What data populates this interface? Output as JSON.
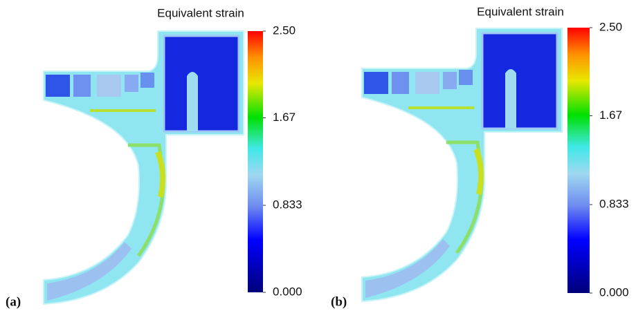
{
  "panels": [
    {
      "label": "(a)",
      "colorbar": {
        "title": "Equivalent strain",
        "lim": [
          0,
          2.5
        ],
        "ticks": [
          {
            "value": 2.5,
            "label": "2.50"
          },
          {
            "value": 1.67,
            "label": "1.67"
          },
          0.833,
          {
            "value": 0,
            "label": "0.000"
          }
        ]
      }
    },
    {
      "label": "(b)",
      "colorbar": {
        "title": "Equivalent strain",
        "lim": [
          0,
          2.5
        ],
        "ticks": [
          {
            "value": 2.5,
            "label": "2.50"
          },
          {
            "value": 1.67,
            "label": "1.67"
          },
          0.833,
          {
            "value": 0,
            "label": "0.000"
          }
        ]
      }
    }
  ]
}
